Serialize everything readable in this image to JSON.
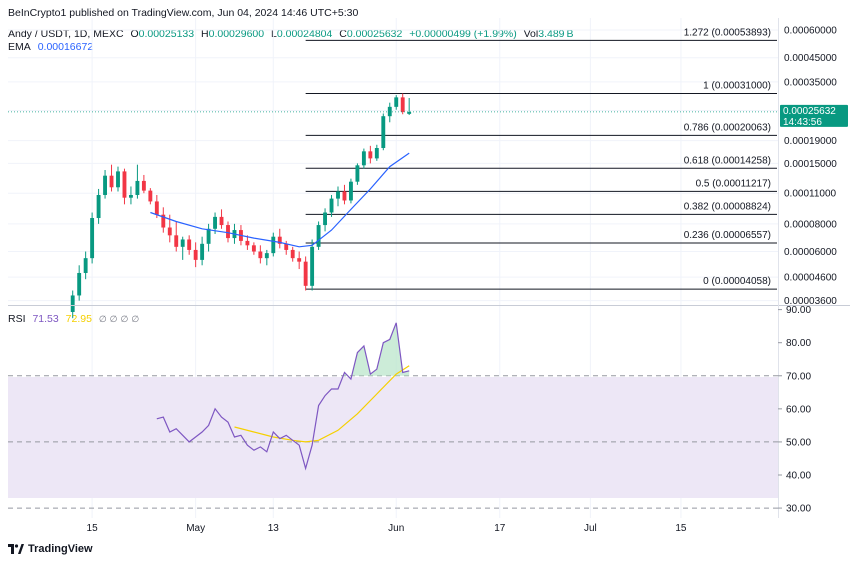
{
  "publisher": "BeInCrypto1 published on TradingView.com, Jun 04, 2024 14:46 UTC+5:30",
  "symbol": {
    "name": "Andy / USDT, 1D, MEXC",
    "o_label": "O",
    "o": "0.00025133",
    "h_label": "H",
    "h": "0.00029600",
    "l_label": "L",
    "l": "0.00024804",
    "c_label": "C",
    "c": "0.00025632",
    "change": "+0.00000499 (+1.99%)",
    "vol_label": "Vol",
    "vol": "3.489",
    "vol_unit": "B"
  },
  "ema": {
    "label": "EMA",
    "value": "0.00016672"
  },
  "rsi": {
    "label": "RSI",
    "value": "71.53",
    "ma_value": "72.95"
  },
  "last_price": {
    "value": "0.00025632",
    "countdown": "14:43:56"
  },
  "colors": {
    "up": "#089981",
    "down": "#f23645",
    "ema": "#2962ff",
    "rsi": "#7e57c2",
    "rsi_ma": "#f5d000",
    "band": "#ede7f6"
  },
  "brand": "TradingView",
  "chart_data": [
    {
      "type": "candlestick",
      "title": "Andy / USDT, 1D, MEXC",
      "y_scale": "log",
      "y_ticks": [
        "0.00060000",
        "0.00045000",
        "0.00035000",
        "0.00026000",
        "0.00019000",
        "0.00015000",
        "0.00011000",
        "0.00008000",
        "0.00006000",
        "0.00004600",
        "0.00003600"
      ],
      "y_tick_values": [
        0.0006,
        0.00045,
        0.00035,
        0.00026,
        0.00019,
        0.00015,
        0.00011,
        8e-05,
        6e-05,
        4.6e-05,
        3.6e-05
      ],
      "ylim": [
        3.55e-05,
        0.00068
      ],
      "x_tick_labels": [
        "15",
        "May",
        "13",
        "Jun",
        "17",
        "Jul",
        "15"
      ],
      "x_tick_dates": [
        "2024-04-15",
        "2024-05-01",
        "2024-05-13",
        "2024-06-01",
        "2024-06-17",
        "2024-07-01",
        "2024-07-15"
      ],
      "xlim": [
        "2024-04-02",
        "2024-07-30"
      ],
      "candles": [
        {
          "date": "2024-04-12",
          "o": 3.2e-05,
          "h": 4e-05,
          "l": 3e-05,
          "c": 3.8e-05
        },
        {
          "date": "2024-04-13",
          "o": 3.8e-05,
          "h": 5.2e-05,
          "l": 3.6e-05,
          "c": 4.8e-05
        },
        {
          "date": "2024-04-14",
          "o": 4.8e-05,
          "h": 6e-05,
          "l": 4.5e-05,
          "c": 5.6e-05
        },
        {
          "date": "2024-04-15",
          "o": 5.6e-05,
          "h": 9e-05,
          "l": 5.3e-05,
          "c": 8.5e-05
        },
        {
          "date": "2024-04-16",
          "o": 8.5e-05,
          "h": 0.000115,
          "l": 8e-05,
          "c": 0.000108
        },
        {
          "date": "2024-04-17",
          "o": 0.000108,
          "h": 0.00014,
          "l": 0.000104,
          "c": 0.000132
        },
        {
          "date": "2024-04-18",
          "o": 0.000132,
          "h": 0.000148,
          "l": 0.000112,
          "c": 0.000117
        },
        {
          "date": "2024-04-19",
          "o": 0.000117,
          "h": 0.000145,
          "l": 0.000112,
          "c": 0.000138
        },
        {
          "date": "2024-04-20",
          "o": 0.000138,
          "h": 0.000142,
          "l": 9.8e-05,
          "c": 0.000105
        },
        {
          "date": "2024-04-21",
          "o": 0.000105,
          "h": 0.000118,
          "l": 9.8e-05,
          "c": 0.000108
        },
        {
          "date": "2024-04-22",
          "o": 0.000108,
          "h": 0.000148,
          "l": 0.000104,
          "c": 0.000125
        },
        {
          "date": "2024-04-23",
          "o": 0.000125,
          "h": 0.000133,
          "l": 0.00011,
          "c": 0.000113
        },
        {
          "date": "2024-04-24",
          "o": 0.000113,
          "h": 0.000116,
          "l": 9.8e-05,
          "c": 0.000101
        },
        {
          "date": "2024-04-25",
          "o": 0.000101,
          "h": 0.000108,
          "l": 8.5e-05,
          "c": 8.8e-05
        },
        {
          "date": "2024-04-26",
          "o": 8.8e-05,
          "h": 9.5e-05,
          "l": 7.3e-05,
          "c": 7.7e-05
        },
        {
          "date": "2024-04-27",
          "o": 7.7e-05,
          "h": 8.8e-05,
          "l": 6.6e-05,
          "c": 7.1e-05
        },
        {
          "date": "2024-04-28",
          "o": 7.1e-05,
          "h": 8.2e-05,
          "l": 6e-05,
          "c": 6.3e-05
        },
        {
          "date": "2024-04-29",
          "o": 6.3e-05,
          "h": 7e-05,
          "l": 5.5e-05,
          "c": 6.8e-05
        },
        {
          "date": "2024-04-30",
          "o": 6.8e-05,
          "h": 7.1e-05,
          "l": 5.8e-05,
          "c": 6.1e-05
        },
        {
          "date": "2024-05-01",
          "o": 6.1e-05,
          "h": 6.6e-05,
          "l": 5.1e-05,
          "c": 5.5e-05
        },
        {
          "date": "2024-05-02",
          "o": 5.5e-05,
          "h": 7e-05,
          "l": 5.2e-05,
          "c": 6.5e-05
        },
        {
          "date": "2024-05-03",
          "o": 6.5e-05,
          "h": 8e-05,
          "l": 6e-05,
          "c": 7.6e-05
        },
        {
          "date": "2024-05-04",
          "o": 7.6e-05,
          "h": 9e-05,
          "l": 7.2e-05,
          "c": 8.6e-05
        },
        {
          "date": "2024-05-05",
          "o": 8.6e-05,
          "h": 9.3e-05,
          "l": 7.6e-05,
          "c": 7.9e-05
        },
        {
          "date": "2024-05-06",
          "o": 7.9e-05,
          "h": 8.2e-05,
          "l": 6.6e-05,
          "c": 6.9e-05
        },
        {
          "date": "2024-05-07",
          "o": 6.9e-05,
          "h": 8e-05,
          "l": 6.5e-05,
          "c": 7.5e-05
        },
        {
          "date": "2024-05-08",
          "o": 7.5e-05,
          "h": 7.9e-05,
          "l": 6.4e-05,
          "c": 6.7e-05
        },
        {
          "date": "2024-05-09",
          "o": 6.7e-05,
          "h": 7.1e-05,
          "l": 6.1e-05,
          "c": 6.4e-05
        },
        {
          "date": "2024-05-10",
          "o": 6.4e-05,
          "h": 6.6e-05,
          "l": 5.8e-05,
          "c": 6e-05
        },
        {
          "date": "2024-05-11",
          "o": 6e-05,
          "h": 6.4e-05,
          "l": 5.3e-05,
          "c": 5.6e-05
        },
        {
          "date": "2024-05-12",
          "o": 5.6e-05,
          "h": 6.1e-05,
          "l": 5.2e-05,
          "c": 5.9e-05
        },
        {
          "date": "2024-05-13",
          "o": 5.9e-05,
          "h": 7.3e-05,
          "l": 5.7e-05,
          "c": 7e-05
        },
        {
          "date": "2024-05-14",
          "o": 7e-05,
          "h": 7.6e-05,
          "l": 6.2e-05,
          "c": 6.5e-05
        },
        {
          "date": "2024-05-15",
          "o": 6.5e-05,
          "h": 6.7e-05,
          "l": 5.8e-05,
          "c": 6.1e-05
        },
        {
          "date": "2024-05-16",
          "o": 6.1e-05,
          "h": 6.3e-05,
          "l": 5.4e-05,
          "c": 5.6e-05
        },
        {
          "date": "2024-05-17",
          "o": 5.6e-05,
          "h": 6e-05,
          "l": 5e-05,
          "c": 5.4e-05
        },
        {
          "date": "2024-05-18",
          "o": 5.4e-05,
          "h": 5.7e-05,
          "l": 4e-05,
          "c": 4.2e-05
        },
        {
          "date": "2024-05-19",
          "o": 4.2e-05,
          "h": 6.8e-05,
          "l": 4e-05,
          "c": 6.3e-05
        },
        {
          "date": "2024-05-20",
          "o": 6.3e-05,
          "h": 8.2e-05,
          "l": 6.1e-05,
          "c": 7.9e-05
        },
        {
          "date": "2024-05-21",
          "o": 7.9e-05,
          "h": 9.4e-05,
          "l": 7.4e-05,
          "c": 9e-05
        },
        {
          "date": "2024-05-22",
          "o": 9e-05,
          "h": 0.000108,
          "l": 8.6e-05,
          "c": 0.000104
        },
        {
          "date": "2024-05-23",
          "o": 0.000104,
          "h": 0.000118,
          "l": 9.6e-05,
          "c": 0.000112
        },
        {
          "date": "2024-05-24",
          "o": 0.000112,
          "h": 0.00012,
          "l": 9.8e-05,
          "c": 0.000102
        },
        {
          "date": "2024-05-25",
          "o": 0.000102,
          "h": 0.000128,
          "l": 9.9e-05,
          "c": 0.000124
        },
        {
          "date": "2024-05-26",
          "o": 0.000124,
          "h": 0.00015,
          "l": 0.00012,
          "c": 0.000147
        },
        {
          "date": "2024-05-27",
          "o": 0.000147,
          "h": 0.000175,
          "l": 0.000142,
          "c": 0.00017
        },
        {
          "date": "2024-05-28",
          "o": 0.00017,
          "h": 0.00018,
          "l": 0.00015,
          "c": 0.000158
        },
        {
          "date": "2024-05-29",
          "o": 0.000158,
          "h": 0.000182,
          "l": 0.000154,
          "c": 0.000176
        },
        {
          "date": "2024-05-30",
          "o": 0.000176,
          "h": 0.000252,
          "l": 0.000172,
          "c": 0.000245
        },
        {
          "date": "2024-05-31",
          "o": 0.000245,
          "h": 0.000282,
          "l": 0.00023,
          "c": 0.00027
        },
        {
          "date": "2024-06-01",
          "o": 0.00027,
          "h": 0.000305,
          "l": 0.000262,
          "c": 0.000298
        },
        {
          "date": "2024-06-02",
          "o": 0.000298,
          "h": 0.00031,
          "l": 0.00025,
          "c": 0.000256
        },
        {
          "date": "2024-06-03",
          "o": 0.000251,
          "h": 0.000296,
          "l": 0.000248,
          "c": 0.000256
        }
      ],
      "ema": {
        "dates": [
          "2024-04-24",
          "2024-04-28",
          "2024-05-02",
          "2024-05-06",
          "2024-05-10",
          "2024-05-14",
          "2024-05-17",
          "2024-05-19",
          "2024-05-22",
          "2024-05-25",
          "2024-05-28",
          "2024-05-31",
          "2024-06-03"
        ],
        "values": [
          9e-05,
          8.2e-05,
          7.6e-05,
          7.3e-05,
          6.9e-05,
          6.6e-05,
          6.3e-05,
          6.4e-05,
          7.5e-05,
          9.3e-05,
          0.000115,
          0.000145,
          0.000167
        ]
      },
      "fib_levels": [
        {
          "label": "1.272 (0.00053893)",
          "value": 0.00053893
        },
        {
          "label": "1 (0.00031000)",
          "value": 0.00031
        },
        {
          "label": "0.786 (0.00020063)",
          "value": 0.00020063
        },
        {
          "label": "0.618 (0.00014258)",
          "value": 0.00014258
        },
        {
          "label": "0.5 (0.00011217)",
          "value": 0.00011217
        },
        {
          "label": "0.382 (0.00008824)",
          "value": 8.824e-05
        },
        {
          "label": "0.236 (0.00006557)",
          "value": 6.557e-05
        },
        {
          "label": "0 (0.00004058)",
          "value": 4.058e-05
        }
      ],
      "fib_start_date": "2024-05-18"
    },
    {
      "type": "line",
      "title": "RSI",
      "ylim": [
        27,
        92
      ],
      "y_ticks": [
        90,
        80,
        70,
        60,
        50,
        40,
        30
      ],
      "overbought": 70,
      "middle": 50,
      "oversold": 30,
      "series": [
        {
          "name": "RSI",
          "dates": [
            "2024-04-25",
            "2024-04-26",
            "2024-04-27",
            "2024-04-28",
            "2024-04-29",
            "2024-04-30",
            "2024-05-01",
            "2024-05-02",
            "2024-05-03",
            "2024-05-04",
            "2024-05-05",
            "2024-05-06",
            "2024-05-07",
            "2024-05-08",
            "2024-05-09",
            "2024-05-10",
            "2024-05-11",
            "2024-05-12",
            "2024-05-13",
            "2024-05-14",
            "2024-05-15",
            "2024-05-16",
            "2024-05-17",
            "2024-05-18",
            "2024-05-19",
            "2024-05-20",
            "2024-05-21",
            "2024-05-22",
            "2024-05-23",
            "2024-05-24",
            "2024-05-25",
            "2024-05-26",
            "2024-05-27",
            "2024-05-28",
            "2024-05-29",
            "2024-05-30",
            "2024-05-31",
            "2024-06-01",
            "2024-06-02",
            "2024-06-03"
          ],
          "values": [
            57,
            57.5,
            53,
            54,
            52,
            50,
            51.5,
            53,
            55,
            60,
            57.5,
            56,
            51.5,
            52,
            49,
            47.5,
            48.5,
            47,
            53,
            51,
            52,
            50.5,
            49,
            42,
            49,
            61,
            64,
            66,
            66,
            71,
            69,
            77,
            79,
            70.5,
            72,
            80,
            81,
            86,
            71,
            71.5
          ]
        },
        {
          "name": "RSI-based MA",
          "dates": [
            "2024-05-07",
            "2024-05-10",
            "2024-05-13",
            "2024-05-16",
            "2024-05-18",
            "2024-05-20",
            "2024-05-23",
            "2024-05-26",
            "2024-05-29",
            "2024-06-01",
            "2024-06-03"
          ],
          "values": [
            54.5,
            53,
            51.5,
            50.5,
            50,
            50.5,
            53.5,
            58.5,
            64.5,
            70.5,
            73
          ]
        }
      ]
    }
  ]
}
